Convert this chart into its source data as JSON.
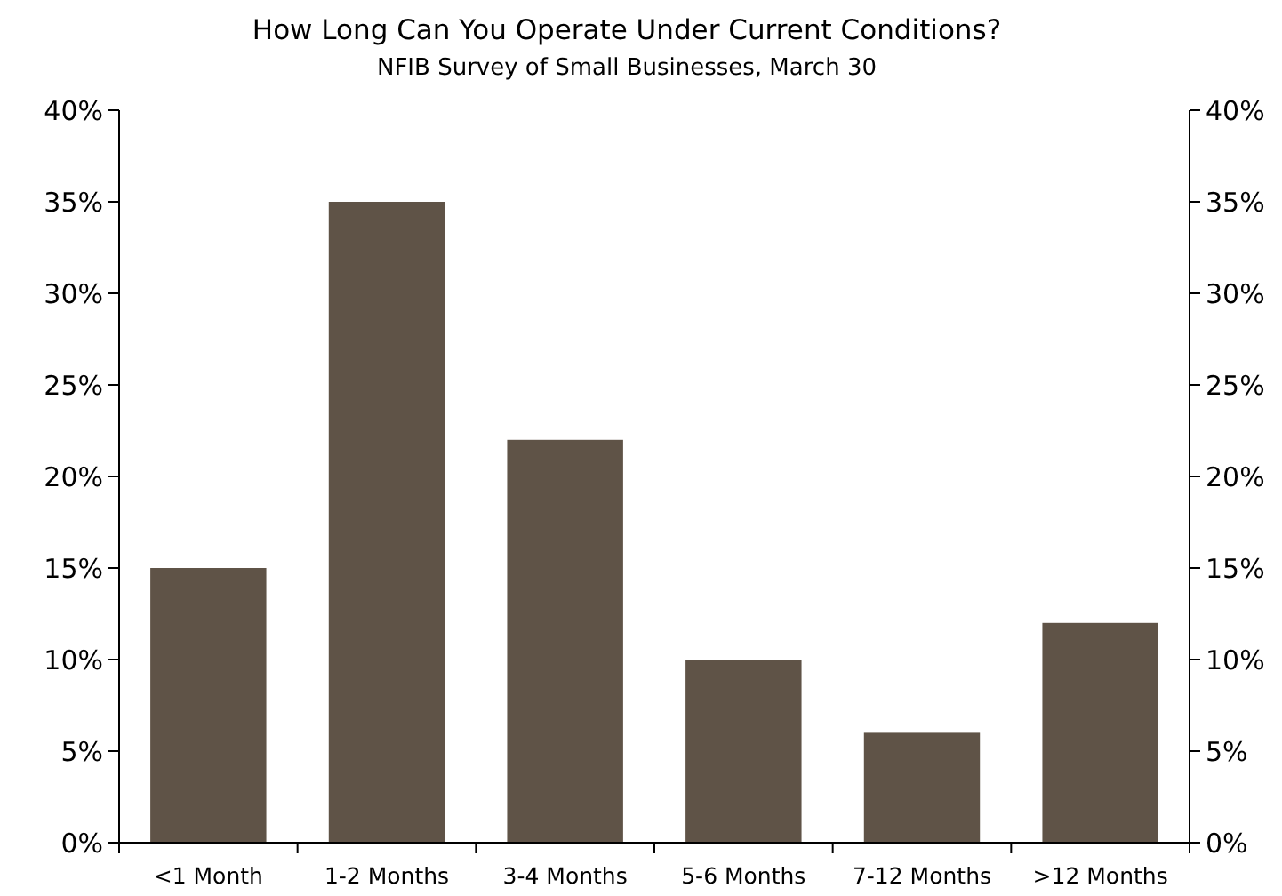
{
  "chart_data": {
    "type": "bar",
    "title": "How Long Can You Operate Under Current Conditions?",
    "subtitle": "NFIB Survey of Small Businesses, March 30",
    "categories": [
      "<1 Month",
      "1-2 Months",
      "3-4 Months",
      "5-6 Months",
      "7-12 Months",
      ">12 Months"
    ],
    "values": [
      15,
      35,
      22,
      10,
      6,
      12
    ],
    "color": "#5f5347",
    "ylim": [
      0,
      40
    ],
    "yticks": [
      {
        "value": 0,
        "label": "0%"
      },
      {
        "value": 5,
        "label": "5%"
      },
      {
        "value": 10,
        "label": "10%"
      },
      {
        "value": 15,
        "label": "15%"
      },
      {
        "value": 20,
        "label": "20%"
      },
      {
        "value": 25,
        "label": "25%"
      },
      {
        "value": 30,
        "label": "30%"
      },
      {
        "value": 35,
        "label": "35%"
      },
      {
        "value": 40,
        "label": "40%"
      }
    ],
    "y2lim": [
      0,
      40
    ],
    "y2ticks": [
      {
        "value": 0,
        "label": "0%"
      },
      {
        "value": 5,
        "label": "5%"
      },
      {
        "value": 10,
        "label": "10%"
      },
      {
        "value": 15,
        "label": "15%"
      },
      {
        "value": 20,
        "label": "20%"
      },
      {
        "value": 25,
        "label": "25%"
      },
      {
        "value": 30,
        "label": "30%"
      },
      {
        "value": 35,
        "label": "35%"
      },
      {
        "value": 40,
        "label": "40%"
      }
    ],
    "grid": false
  }
}
